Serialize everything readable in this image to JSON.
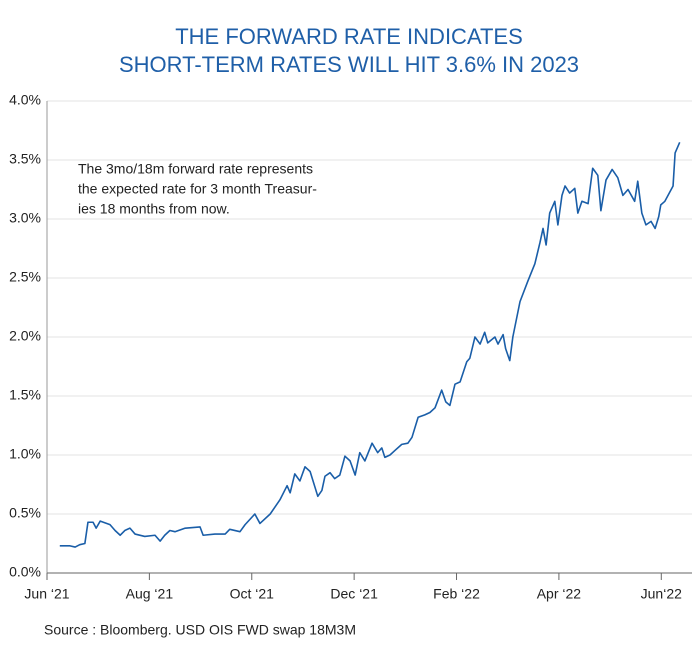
{
  "chart_data": {
    "type": "line",
    "title": [
      "THE FORWARD RATE INDICATES",
      "SHORT-TERM RATES WILL HIT 3.6% IN 2023"
    ],
    "annotation": [
      "The 3mo/18m forward rate represents",
      "the expected rate for 3 month Treasur-",
      "ies 18 months from now."
    ],
    "source": "Source : Bloomberg. USD OIS FWD swap 18M3M",
    "x": [
      0.25,
      0.45,
      0.55,
      0.64,
      0.74,
      0.8,
      0.9,
      0.96,
      1.04,
      1.23,
      1.33,
      1.43,
      1.52,
      1.62,
      1.72,
      1.91,
      2.11,
      2.21,
      2.3,
      2.4,
      2.5,
      2.7,
      2.99,
      3.05,
      3.28,
      3.48,
      3.57,
      3.77,
      3.87,
      4.06,
      4.16,
      4.36,
      4.55,
      4.69,
      4.75,
      4.84,
      4.94,
      5.04,
      5.14,
      5.29,
      5.37,
      5.43,
      5.53,
      5.62,
      5.72,
      5.82,
      5.92,
      6.02,
      6.11,
      6.21,
      6.35,
      6.46,
      6.54,
      6.6,
      6.7,
      6.8,
      6.93,
      7.05,
      7.13,
      7.25,
      7.38,
      7.48,
      7.58,
      7.71,
      7.79,
      7.87,
      7.97,
      8.07,
      8.2,
      8.26,
      8.36,
      8.46,
      8.55,
      8.61,
      8.75,
      8.81,
      8.91,
      8.96,
      9.04,
      9.1,
      9.24,
      9.39,
      9.53,
      9.63,
      9.69,
      9.75,
      9.82,
      9.92,
      9.98,
      10.06,
      10.12,
      10.21,
      10.31,
      10.37,
      10.45,
      10.57,
      10.66,
      10.76,
      10.82,
      10.92,
      11.04,
      11.15,
      11.25,
      11.35,
      11.48,
      11.54,
      11.62,
      11.7,
      11.8,
      11.88,
      11.95,
      11.99,
      12.07,
      12.23,
      12.27,
      12.36
    ],
    "series": [
      {
        "name": "3mo/18m forward rate",
        "color": "#1a5ea8",
        "values": [
          0.23,
          0.23,
          0.22,
          0.24,
          0.25,
          0.43,
          0.43,
          0.38,
          0.44,
          0.41,
          0.36,
          0.32,
          0.36,
          0.38,
          0.33,
          0.31,
          0.32,
          0.27,
          0.32,
          0.36,
          0.35,
          0.38,
          0.39,
          0.32,
          0.33,
          0.33,
          0.37,
          0.35,
          0.41,
          0.5,
          0.42,
          0.5,
          0.62,
          0.74,
          0.68,
          0.84,
          0.78,
          0.9,
          0.86,
          0.65,
          0.7,
          0.82,
          0.85,
          0.8,
          0.83,
          0.99,
          0.95,
          0.83,
          1.02,
          0.95,
          1.1,
          1.02,
          1.06,
          0.98,
          1.0,
          1.04,
          1.09,
          1.1,
          1.15,
          1.32,
          1.34,
          1.36,
          1.4,
          1.55,
          1.45,
          1.42,
          1.6,
          1.62,
          1.79,
          1.82,
          2.0,
          1.94,
          2.04,
          1.95,
          2.0,
          1.94,
          2.02,
          1.9,
          1.8,
          2.0,
          2.3,
          2.47,
          2.62,
          2.8,
          2.92,
          2.78,
          3.05,
          3.15,
          2.95,
          3.2,
          3.28,
          3.22,
          3.26,
          3.05,
          3.15,
          3.13,
          3.43,
          3.37,
          3.07,
          3.33,
          3.42,
          3.35,
          3.2,
          3.25,
          3.15,
          3.32,
          3.05,
          2.95,
          2.98,
          2.92,
          3.02,
          3.12,
          3.15,
          3.28,
          3.56,
          3.65
        ]
      }
    ],
    "xlim": [
      0,
      12.6
    ],
    "xticks": [
      {
        "value": 0,
        "label": "Jun ‘21"
      },
      {
        "value": 2,
        "label": "Aug ‘21"
      },
      {
        "value": 4,
        "label": "Oct ‘21"
      },
      {
        "value": 6,
        "label": "Dec ‘21"
      },
      {
        "value": 8,
        "label": "Feb ‘22"
      },
      {
        "value": 10,
        "label": "Apr ‘22"
      },
      {
        "value": 12,
        "label": "Jun‘22"
      }
    ],
    "ylim": [
      0,
      4
    ],
    "yticks": [
      {
        "value": 0,
        "label": "0.0%"
      },
      {
        "value": 0.5,
        "label": "0.5%"
      },
      {
        "value": 1,
        "label": "1.0%"
      },
      {
        "value": 1.5,
        "label": "1.5%"
      },
      {
        "value": 2,
        "label": "2.0%"
      },
      {
        "value": 2.5,
        "label": "2.5%"
      },
      {
        "value": 3,
        "label": "3.0%"
      },
      {
        "value": 3.5,
        "label": "3.5%"
      },
      {
        "value": 4,
        "label": "4.0%"
      }
    ],
    "grid": true
  }
}
